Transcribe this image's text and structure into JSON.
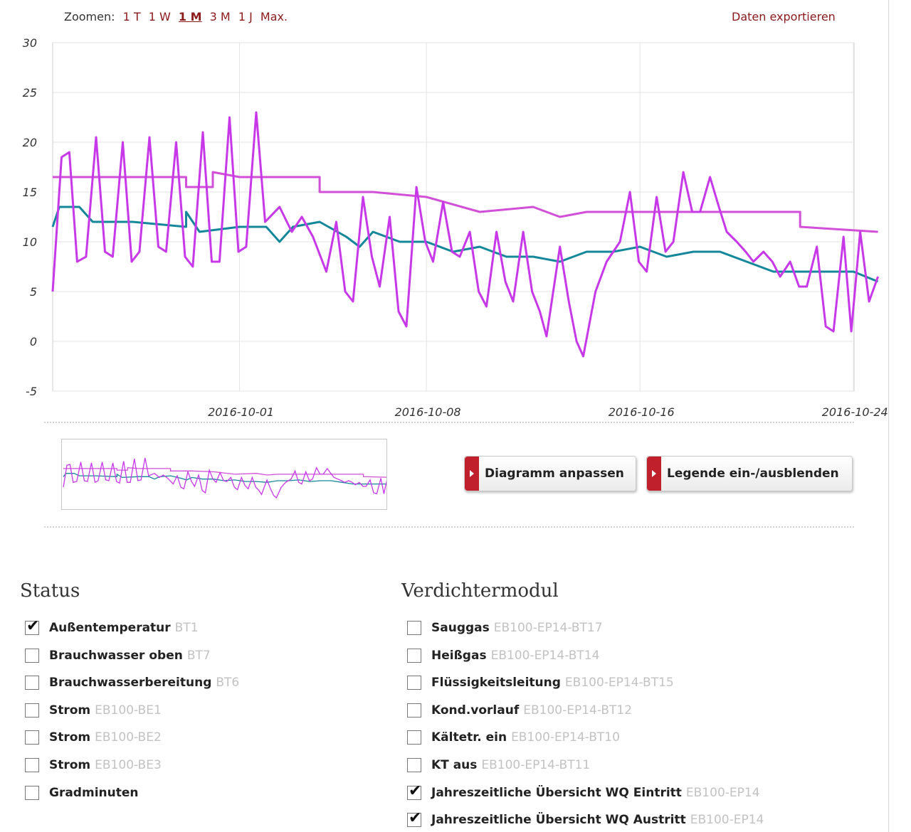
{
  "toolbar": {
    "zoom_label": "Zoomen:",
    "zoom_options": [
      "1 T",
      "1 W",
      "1 M",
      "3 M",
      "1 J",
      "Max."
    ],
    "zoom_active": "1 M",
    "export_label": "Daten exportieren"
  },
  "colors": {
    "link": "#8b1a1a",
    "button_accent": "#c0202c",
    "series_outdoor": "#c738e8",
    "series_wq_inlet": "#d24fd8",
    "series_wq_outlet": "#15879a"
  },
  "chart_data": {
    "type": "line",
    "y_ticks": [
      "30",
      "25",
      "20",
      "15",
      "10",
      "5",
      "0",
      "-5"
    ],
    "x_ticks": [
      "2016-10-01",
      "2016-10-08",
      "2016-10-16",
      "2016-10-24"
    ],
    "ylim": [
      -5,
      30
    ],
    "xlim": [
      "2016-09-24",
      "2016-10-24"
    ],
    "grid": true,
    "series": [
      {
        "name": "Außentemperatur",
        "color": "#c738e8",
        "points": [
          [
            "2016-09-24T00:00",
            5.0
          ],
          [
            "2016-09-24T08:00",
            18.5
          ],
          [
            "2016-09-24T15:00",
            19.0
          ],
          [
            "2016-09-24T22:00",
            8.0
          ],
          [
            "2016-09-25T06:00",
            8.5
          ],
          [
            "2016-09-25T15:00",
            20.5
          ],
          [
            "2016-09-25T23:00",
            9.0
          ],
          [
            "2016-09-26T06:00",
            8.5
          ],
          [
            "2016-09-26T15:00",
            20.0
          ],
          [
            "2016-09-26T23:00",
            8.0
          ],
          [
            "2016-09-27T06:00",
            9.0
          ],
          [
            "2016-09-27T15:00",
            20.5
          ],
          [
            "2016-09-27T23:00",
            9.5
          ],
          [
            "2016-09-28T06:00",
            9.0
          ],
          [
            "2016-09-28T15:00",
            20.0
          ],
          [
            "2016-09-28T23:00",
            8.5
          ],
          [
            "2016-09-29T06:00",
            7.5
          ],
          [
            "2016-09-29T15:00",
            21.0
          ],
          [
            "2016-09-29T23:00",
            8.0
          ],
          [
            "2016-09-30T06:00",
            8.0
          ],
          [
            "2016-09-30T15:00",
            22.5
          ],
          [
            "2016-09-30T23:00",
            9.0
          ],
          [
            "2016-10-01T06:00",
            9.5
          ],
          [
            "2016-10-01T15:00",
            23.0
          ],
          [
            "2016-10-01T23:00",
            12.0
          ],
          [
            "2016-10-02T12:00",
            13.5
          ],
          [
            "2016-10-02T23:00",
            11.0
          ],
          [
            "2016-10-03T08:00",
            12.5
          ],
          [
            "2016-10-03T18:00",
            10.5
          ],
          [
            "2016-10-04T06:00",
            7.0
          ],
          [
            "2016-10-04T15:00",
            12.0
          ],
          [
            "2016-10-04T23:00",
            5.0
          ],
          [
            "2016-10-05T06:00",
            4.0
          ],
          [
            "2016-10-05T15:00",
            14.5
          ],
          [
            "2016-10-05T23:00",
            8.5
          ],
          [
            "2016-10-06T06:00",
            5.5
          ],
          [
            "2016-10-06T15:00",
            12.5
          ],
          [
            "2016-10-06T23:00",
            3.0
          ],
          [
            "2016-10-07T06:00",
            1.5
          ],
          [
            "2016-10-07T15:00",
            15.5
          ],
          [
            "2016-10-07T23:00",
            10.0
          ],
          [
            "2016-10-08T06:00",
            8.0
          ],
          [
            "2016-10-08T15:00",
            14.0
          ],
          [
            "2016-10-08T23:00",
            9.0
          ],
          [
            "2016-10-09T06:00",
            8.5
          ],
          [
            "2016-10-09T15:00",
            11.0
          ],
          [
            "2016-10-09T23:00",
            5.0
          ],
          [
            "2016-10-10T06:00",
            3.5
          ],
          [
            "2016-10-10T15:00",
            11.0
          ],
          [
            "2016-10-10T23:00",
            6.0
          ],
          [
            "2016-10-11T06:00",
            4.0
          ],
          [
            "2016-10-11T15:00",
            11.0
          ],
          [
            "2016-10-11T23:00",
            5.0
          ],
          [
            "2016-10-12T06:00",
            3.0
          ],
          [
            "2016-10-12T12:00",
            0.5
          ],
          [
            "2016-10-12T18:00",
            5.0
          ],
          [
            "2016-10-13T00:00",
            9.5
          ],
          [
            "2016-10-13T08:00",
            4.0
          ],
          [
            "2016-10-13T15:00",
            0.0
          ],
          [
            "2016-10-13T21:00",
            -1.5
          ],
          [
            "2016-10-14T08:00",
            5.0
          ],
          [
            "2016-10-14T18:00",
            8.0
          ],
          [
            "2016-10-15T06:00",
            10.0
          ],
          [
            "2016-10-15T15:00",
            15.0
          ],
          [
            "2016-10-15T23:00",
            8.0
          ],
          [
            "2016-10-16T06:00",
            7.0
          ],
          [
            "2016-10-16T15:00",
            14.5
          ],
          [
            "2016-10-16T23:00",
            9.0
          ],
          [
            "2016-10-17T06:00",
            10.0
          ],
          [
            "2016-10-17T15:00",
            17.0
          ],
          [
            "2016-10-17T23:00",
            13.0
          ],
          [
            "2016-10-18T06:00",
            13.0
          ],
          [
            "2016-10-18T15:00",
            16.5
          ],
          [
            "2016-10-18T23:00",
            13.5
          ],
          [
            "2016-10-19T06:00",
            11.0
          ],
          [
            "2016-10-19T15:00",
            10.0
          ],
          [
            "2016-10-19T23:00",
            9.0
          ],
          [
            "2016-10-20T06:00",
            8.0
          ],
          [
            "2016-10-20T15:00",
            9.0
          ],
          [
            "2016-10-20T23:00",
            8.0
          ],
          [
            "2016-10-21T06:00",
            6.5
          ],
          [
            "2016-10-21T15:00",
            8.0
          ],
          [
            "2016-10-21T23:00",
            5.5
          ],
          [
            "2016-10-22T06:00",
            5.5
          ],
          [
            "2016-10-22T15:00",
            9.5
          ],
          [
            "2016-10-22T23:00",
            1.5
          ],
          [
            "2016-10-23T06:00",
            1.0
          ],
          [
            "2016-10-23T15:00",
            10.5
          ],
          [
            "2016-10-23T22:00",
            1.0
          ],
          [
            "2016-10-24T06:00",
            11.0
          ],
          [
            "2016-10-24T14:00",
            4.0
          ],
          [
            "2016-10-24T22:00",
            6.5
          ]
        ]
      },
      {
        "name": "Jahreszeitliche Übersicht WQ Eintritt",
        "color": "#d24fd8",
        "points": [
          [
            "2016-09-24T00:00",
            16.5
          ],
          [
            "2016-09-29T00:00",
            16.5
          ],
          [
            "2016-09-29T00:00",
            15.5
          ],
          [
            "2016-09-30T00:00",
            15.5
          ],
          [
            "2016-09-30T00:00",
            17.0
          ],
          [
            "2016-10-01T00:00",
            16.5
          ],
          [
            "2016-10-04T00:00",
            16.5
          ],
          [
            "2016-10-04T00:00",
            15.0
          ],
          [
            "2016-10-06T00:00",
            15.0
          ],
          [
            "2016-10-08T00:00",
            14.5
          ],
          [
            "2016-10-10T00:00",
            13.0
          ],
          [
            "2016-10-12T00:00",
            13.5
          ],
          [
            "2016-10-13T00:00",
            12.5
          ],
          [
            "2016-10-14T00:00",
            13.0
          ],
          [
            "2016-10-16T00:00",
            13.0
          ],
          [
            "2016-10-18T00:00",
            13.0
          ],
          [
            "2016-10-21T00:00",
            13.0
          ],
          [
            "2016-10-22T00:00",
            13.0
          ],
          [
            "2016-10-22T00:00",
            11.5
          ],
          [
            "2016-10-24T22:00",
            11.0
          ]
        ]
      },
      {
        "name": "Jahreszeitliche Übersicht WQ Austritt",
        "color": "#15879a",
        "points": [
          [
            "2016-09-24T00:00",
            11.5
          ],
          [
            "2016-09-24T06:00",
            13.5
          ],
          [
            "2016-09-25T00:00",
            13.5
          ],
          [
            "2016-09-25T12:00",
            12.0
          ],
          [
            "2016-09-27T00:00",
            12.0
          ],
          [
            "2016-09-29T00:00",
            11.5
          ],
          [
            "2016-09-29T00:00",
            13.0
          ],
          [
            "2016-09-29T12:00",
            11.0
          ],
          [
            "2016-10-01T00:00",
            11.5
          ],
          [
            "2016-10-02T00:00",
            11.5
          ],
          [
            "2016-10-02T12:00",
            10.0
          ],
          [
            "2016-10-03T00:00",
            11.5
          ],
          [
            "2016-10-04T00:00",
            12.0
          ],
          [
            "2016-10-05T00:00",
            10.5
          ],
          [
            "2016-10-05T12:00",
            9.5
          ],
          [
            "2016-10-06T00:00",
            11.0
          ],
          [
            "2016-10-07T00:00",
            10.0
          ],
          [
            "2016-10-08T00:00",
            10.0
          ],
          [
            "2016-10-09T00:00",
            9.0
          ],
          [
            "2016-10-10T00:00",
            9.5
          ],
          [
            "2016-10-11T00:00",
            8.5
          ],
          [
            "2016-10-12T00:00",
            8.5
          ],
          [
            "2016-10-13T00:00",
            8.0
          ],
          [
            "2016-10-14T00:00",
            9.0
          ],
          [
            "2016-10-15T00:00",
            9.0
          ],
          [
            "2016-10-16T00:00",
            9.5
          ],
          [
            "2016-10-17T00:00",
            8.5
          ],
          [
            "2016-10-18T00:00",
            9.0
          ],
          [
            "2016-10-19T00:00",
            9.0
          ],
          [
            "2016-10-20T00:00",
            8.0
          ],
          [
            "2016-10-21T00:00",
            7.0
          ],
          [
            "2016-10-22T00:00",
            7.0
          ],
          [
            "2016-10-23T00:00",
            7.0
          ],
          [
            "2016-10-24T00:00",
            7.0
          ],
          [
            "2016-10-24T22:00",
            6.0
          ]
        ]
      }
    ]
  },
  "buttons": {
    "adjust_label": "Diagramm anpassen",
    "legend_label": "Legende ein-/ausblenden"
  },
  "status_section": {
    "title": "Status",
    "items": [
      {
        "label": "Außentemperatur",
        "code": "BT1",
        "checked": true
      },
      {
        "label": "Brauchwasser oben",
        "code": "BT7",
        "checked": false
      },
      {
        "label": "Brauchwasserbereitung",
        "code": "BT6",
        "checked": false
      },
      {
        "label": "Strom",
        "code": "EB100-BE1",
        "checked": false
      },
      {
        "label": "Strom",
        "code": "EB100-BE2",
        "checked": false
      },
      {
        "label": "Strom",
        "code": "EB100-BE3",
        "checked": false
      },
      {
        "label": "Gradminuten",
        "code": "",
        "checked": false
      }
    ]
  },
  "compressor_section": {
    "title": "Verdichtermodul",
    "items": [
      {
        "label": "Sauggas",
        "code": "EB100-EP14-BT17",
        "checked": false
      },
      {
        "label": "Heißgas",
        "code": "EB100-EP14-BT14",
        "checked": false
      },
      {
        "label": "Flüssigkeitsleitung",
        "code": "EB100-EP14-BT15",
        "checked": false
      },
      {
        "label": "Kond.vorlauf",
        "code": "EB100-EP14-BT12",
        "checked": false
      },
      {
        "label": "Kältetr. ein",
        "code": "EB100-EP14-BT10",
        "checked": false
      },
      {
        "label": "KT aus",
        "code": "EB100-EP14-BT11",
        "checked": false
      },
      {
        "label": "Jahreszeitliche Übersicht WQ Eintritt",
        "code": "EB100-EP14",
        "checked": true
      },
      {
        "label": "Jahreszeitliche Übersicht WQ Austritt",
        "code": "EB100-EP14",
        "checked": true
      }
    ]
  }
}
